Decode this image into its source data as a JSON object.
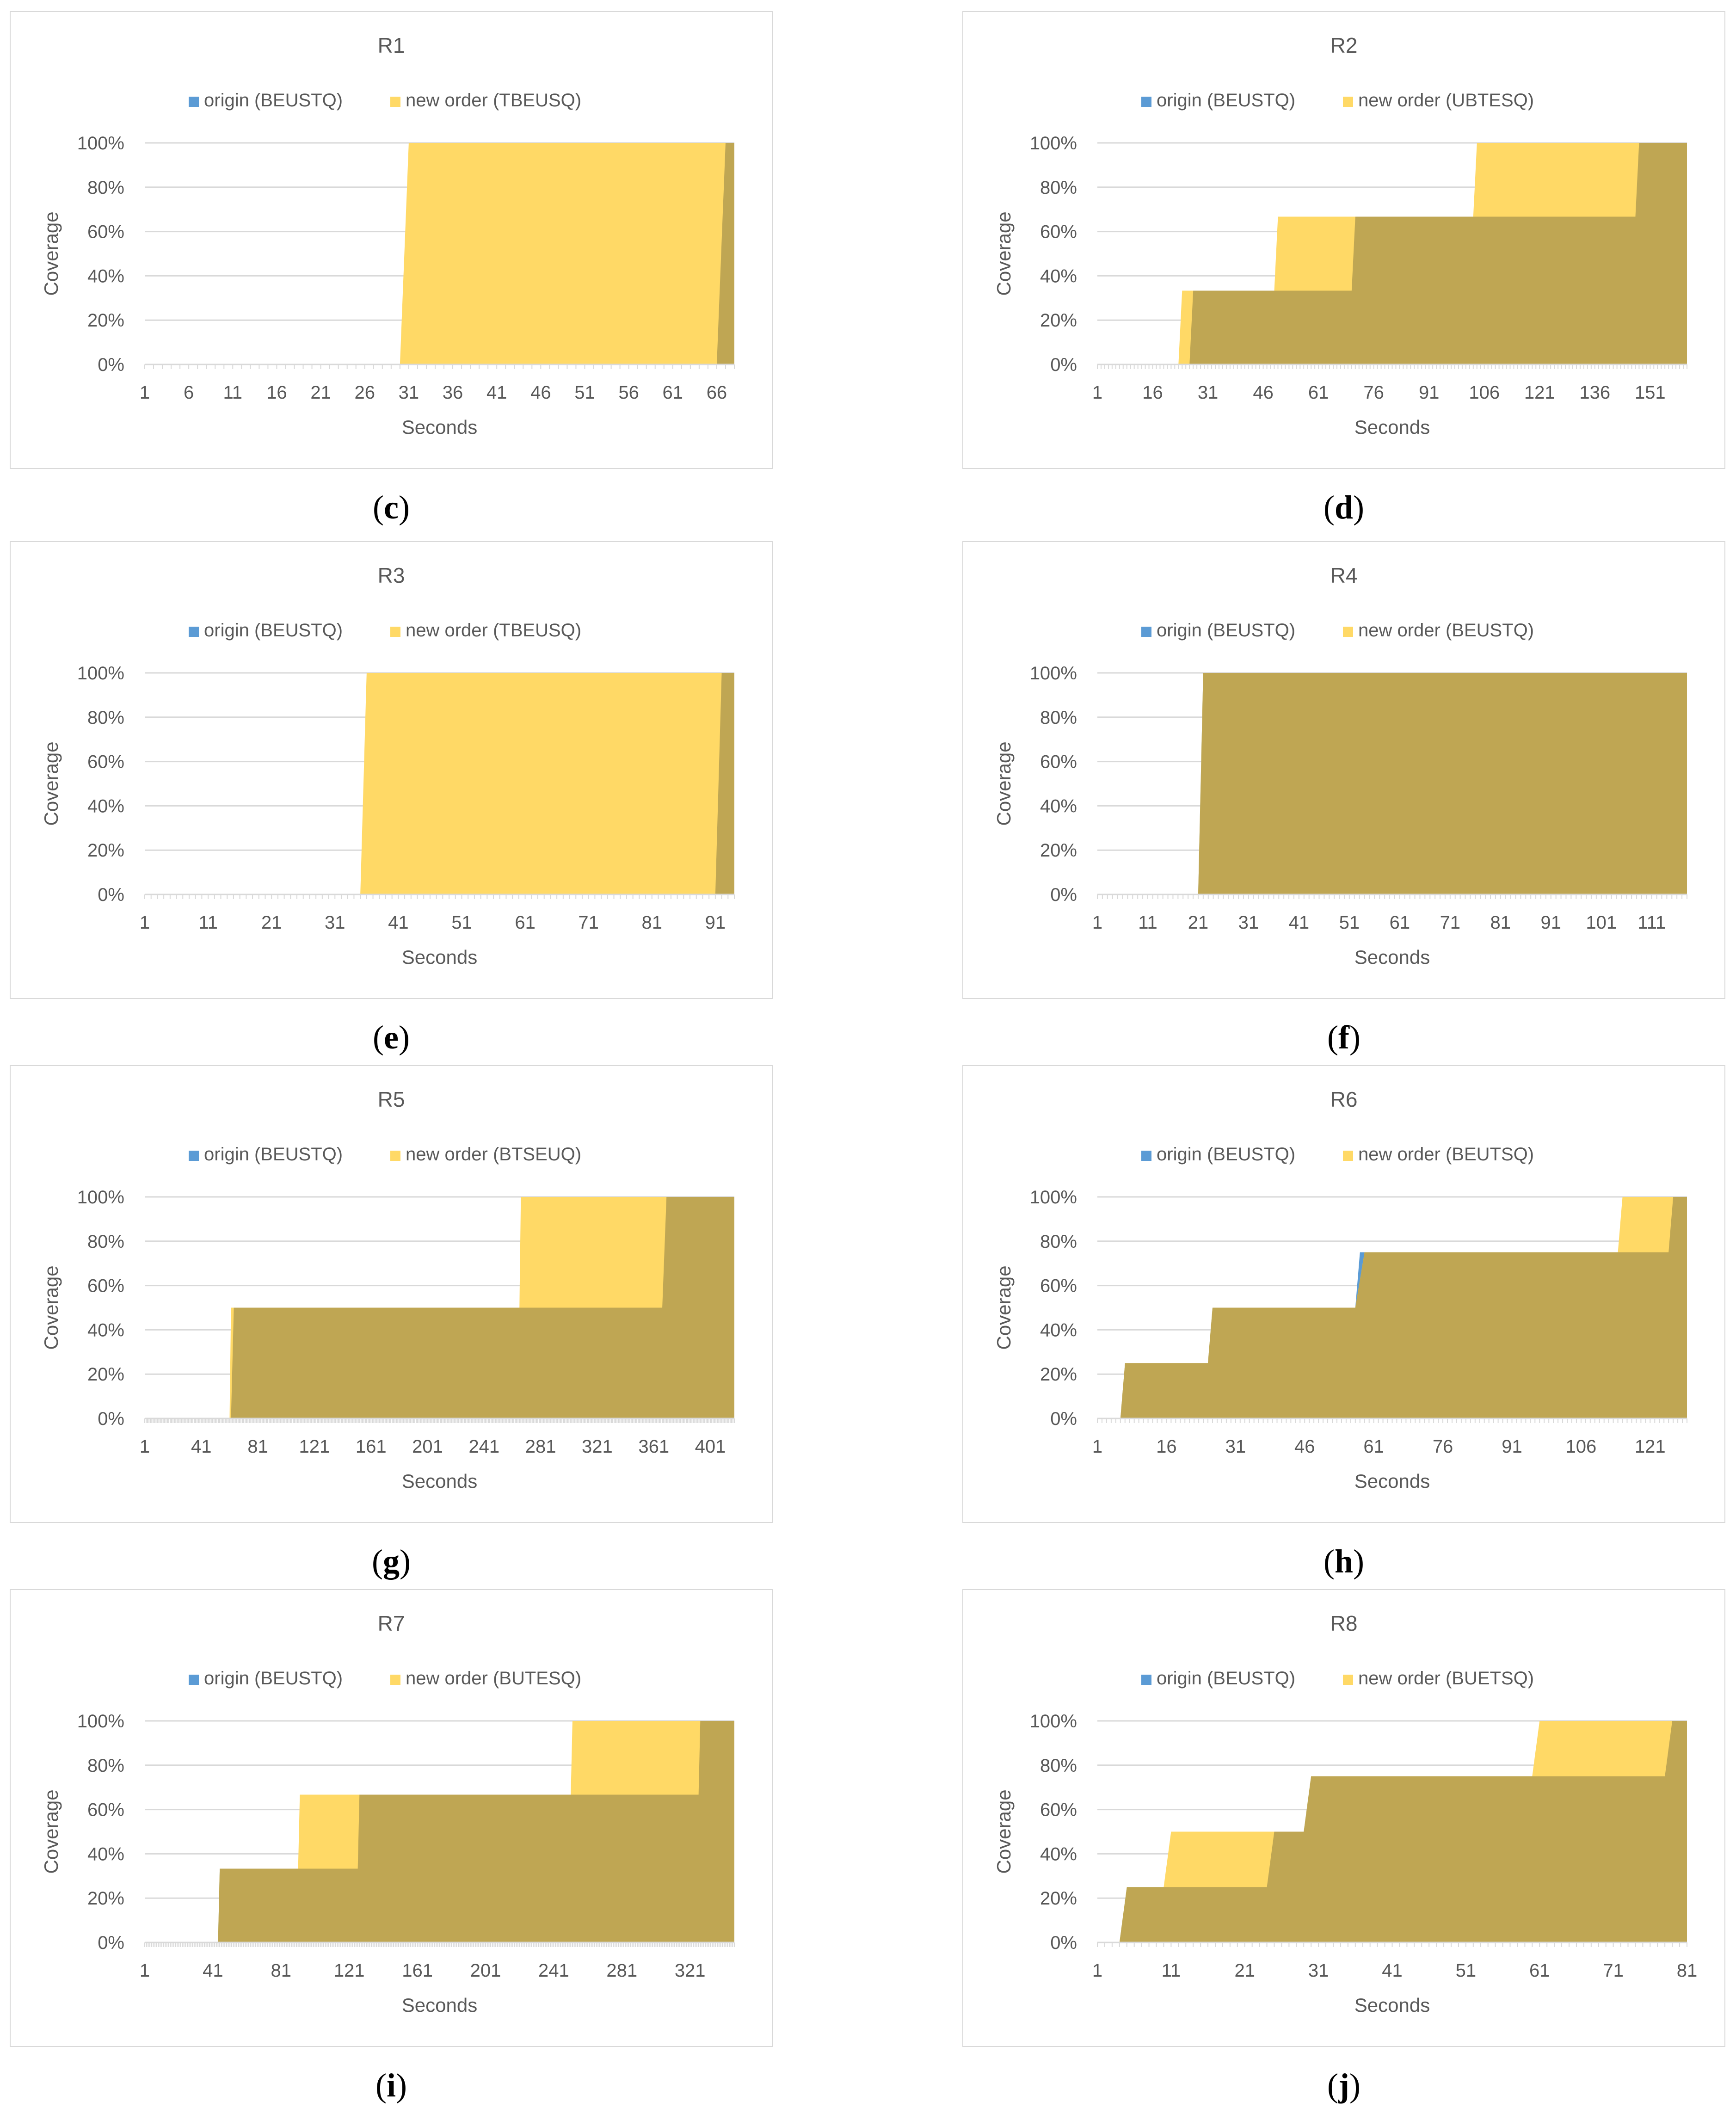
{
  "colors": {
    "origin": "#5b9bd5",
    "new_order": "#ffd966",
    "overlap": "#bfa653",
    "grid": "#d9d9d9",
    "text": "#595959"
  },
  "y_ticks": [
    "0%",
    "20%",
    "40%",
    "60%",
    "80%",
    "100%"
  ],
  "chart_data": [
    {
      "type": "area",
      "panel": "c",
      "title": "R1",
      "xlabel": "Seconds",
      "ylabel": "Coverage",
      "ylim": [
        0,
        100
      ],
      "xlim": [
        1,
        68
      ],
      "x_ticks": [
        "1",
        "6",
        "11",
        "16",
        "21",
        "26",
        "31",
        "36",
        "41",
        "46",
        "51",
        "56",
        "61",
        "66"
      ],
      "series": [
        {
          "name": "origin (BEUSTQ)",
          "points": [
            [
              1,
              0
            ],
            [
              66,
              0
            ],
            [
              67,
              100
            ],
            [
              68,
              100
            ]
          ]
        },
        {
          "name": "new order (TBEUSQ)",
          "points": [
            [
              1,
              0
            ],
            [
              30,
              0
            ],
            [
              31,
              100
            ],
            [
              68,
              100
            ]
          ]
        }
      ]
    },
    {
      "type": "area",
      "panel": "d",
      "title": "R2",
      "xlabel": "Seconds",
      "ylabel": "Coverage",
      "ylim": [
        0,
        100
      ],
      "xlim": [
        1,
        161
      ],
      "x_ticks": [
        "1",
        "16",
        "31",
        "46",
        "61",
        "76",
        "91",
        "106",
        "121",
        "136",
        "151"
      ],
      "series": [
        {
          "name": "origin (BEUSTQ)",
          "points": [
            [
              1,
              0
            ],
            [
              26,
              0
            ],
            [
              27,
              33.3
            ],
            [
              70,
              33.3
            ],
            [
              71,
              66.7
            ],
            [
              147,
              66.7
            ],
            [
              148,
              100
            ],
            [
              161,
              100
            ]
          ]
        },
        {
          "name": "new order (UBTESQ)",
          "points": [
            [
              1,
              0
            ],
            [
              23,
              0
            ],
            [
              24,
              33.3
            ],
            [
              49,
              33.3
            ],
            [
              50,
              66.7
            ],
            [
              103,
              66.7
            ],
            [
              104,
              100
            ],
            [
              161,
              100
            ]
          ]
        }
      ]
    },
    {
      "type": "area",
      "panel": "e",
      "title": "R3",
      "xlabel": "Seconds",
      "ylabel": "Coverage",
      "ylim": [
        0,
        100
      ],
      "xlim": [
        1,
        94
      ],
      "x_ticks": [
        "1",
        "11",
        "21",
        "31",
        "41",
        "51",
        "61",
        "71",
        "81",
        "91"
      ],
      "series": [
        {
          "name": "origin (BEUSTQ)",
          "points": [
            [
              1,
              0
            ],
            [
              91,
              0
            ],
            [
              92,
              100
            ],
            [
              94,
              100
            ]
          ]
        },
        {
          "name": "new order (TBEUSQ)",
          "points": [
            [
              1,
              0
            ],
            [
              35,
              0
            ],
            [
              36,
              100
            ],
            [
              94,
              100
            ]
          ]
        }
      ]
    },
    {
      "type": "area",
      "panel": "f",
      "title": "R4",
      "xlabel": "Seconds",
      "ylabel": "Coverage",
      "ylim": [
        0,
        100
      ],
      "xlim": [
        1,
        118
      ],
      "x_ticks": [
        "1",
        "11",
        "21",
        "31",
        "41",
        "51",
        "61",
        "71",
        "81",
        "91",
        "101",
        "111"
      ],
      "series": [
        {
          "name": "origin (BEUSTQ)",
          "points": [
            [
              1,
              0
            ],
            [
              21,
              0
            ],
            [
              22,
              100
            ],
            [
              118,
              100
            ]
          ]
        },
        {
          "name": "new order (BEUSTQ)",
          "points": [
            [
              1,
              0
            ],
            [
              21,
              0
            ],
            [
              22,
              100
            ],
            [
              118,
              100
            ]
          ]
        }
      ]
    },
    {
      "type": "area",
      "panel": "g",
      "title": "R5",
      "xlabel": "Seconds",
      "ylabel": "Coverage",
      "ylim": [
        0,
        100
      ],
      "xlim": [
        1,
        418
      ],
      "x_ticks": [
        "1",
        "41",
        "81",
        "121",
        "161",
        "201",
        "241",
        "281",
        "321",
        "361",
        "401"
      ],
      "series": [
        {
          "name": "origin (BEUSTQ)",
          "points": [
            [
              1,
              0
            ],
            [
              62,
              0
            ],
            [
              64,
              50
            ],
            [
              367,
              50
            ],
            [
              370,
              100
            ],
            [
              418,
              100
            ]
          ]
        },
        {
          "name": "new order (BTSEUQ)",
          "points": [
            [
              1,
              0
            ],
            [
              61,
              0
            ],
            [
              62,
              50
            ],
            [
              266,
              50
            ],
            [
              267,
              100
            ],
            [
              418,
              100
            ]
          ]
        }
      ]
    },
    {
      "type": "area",
      "panel": "h",
      "title": "R6",
      "xlabel": "Seconds",
      "ylabel": "Coverage",
      "ylim": [
        0,
        100
      ],
      "xlim": [
        1,
        129
      ],
      "x_ticks": [
        "1",
        "16",
        "31",
        "46",
        "61",
        "76",
        "91",
        "106",
        "121"
      ],
      "series": [
        {
          "name": "origin (BEUSTQ)",
          "points": [
            [
              1,
              0
            ],
            [
              6,
              0
            ],
            [
              7,
              25
            ],
            [
              25,
              25
            ],
            [
              26,
              50
            ],
            [
              57,
              50
            ],
            [
              58,
              75
            ],
            [
              125,
              75
            ],
            [
              126,
              100
            ],
            [
              129,
              100
            ]
          ]
        },
        {
          "name": "new order (BEUTSQ)",
          "points": [
            [
              1,
              0
            ],
            [
              6,
              0
            ],
            [
              7,
              25
            ],
            [
              25,
              25
            ],
            [
              26,
              50
            ],
            [
              57,
              50
            ],
            [
              59,
              75
            ],
            [
              114,
              75
            ],
            [
              115,
              100
            ],
            [
              129,
              100
            ]
          ]
        }
      ]
    },
    {
      "type": "area",
      "panel": "i",
      "title": "R7",
      "xlabel": "Seconds",
      "ylabel": "Coverage",
      "ylim": [
        0,
        100
      ],
      "xlim": [
        1,
        347
      ],
      "x_ticks": [
        "1",
        "41",
        "81",
        "121",
        "161",
        "201",
        "241",
        "281",
        "321"
      ],
      "series": [
        {
          "name": "origin (BEUSTQ)",
          "points": [
            [
              1,
              0
            ],
            [
              44,
              0
            ],
            [
              45,
              33.3
            ],
            [
              126,
              33.3
            ],
            [
              127,
              66.7
            ],
            [
              326,
              66.7
            ],
            [
              327,
              100
            ],
            [
              347,
              100
            ]
          ]
        },
        {
          "name": "new order (BUTESQ)",
          "points": [
            [
              1,
              0
            ],
            [
              44,
              0
            ],
            [
              45,
              33.3
            ],
            [
              91,
              33.3
            ],
            [
              92,
              66.7
            ],
            [
              251,
              66.7
            ],
            [
              252,
              100
            ],
            [
              347,
              100
            ]
          ]
        }
      ]
    },
    {
      "type": "area",
      "panel": "j",
      "title": "R8",
      "xlabel": "Seconds",
      "ylabel": "Coverage",
      "ylim": [
        0,
        100
      ],
      "xlim": [
        1,
        81
      ],
      "x_ticks": [
        "1",
        "11",
        "21",
        "31",
        "41",
        "51",
        "61",
        "71",
        "81"
      ],
      "series": [
        {
          "name": "origin (BEUSTQ)",
          "points": [
            [
              1,
              0
            ],
            [
              4,
              0
            ],
            [
              5,
              25
            ],
            [
              24,
              25
            ],
            [
              25,
              50
            ],
            [
              29,
              50
            ],
            [
              30,
              75
            ],
            [
              78,
              75
            ],
            [
              79,
              100
            ],
            [
              81,
              100
            ]
          ]
        },
        {
          "name": "new order (BUETSQ)",
          "points": [
            [
              1,
              0
            ],
            [
              4,
              0
            ],
            [
              5,
              25
            ],
            [
              10,
              25
            ],
            [
              11,
              50
            ],
            [
              23,
              50
            ],
            [
              24,
              50
            ],
            [
              29,
              50
            ],
            [
              30,
              75
            ],
            [
              60,
              75
            ],
            [
              61,
              100
            ],
            [
              81,
              100
            ]
          ]
        }
      ]
    }
  ]
}
